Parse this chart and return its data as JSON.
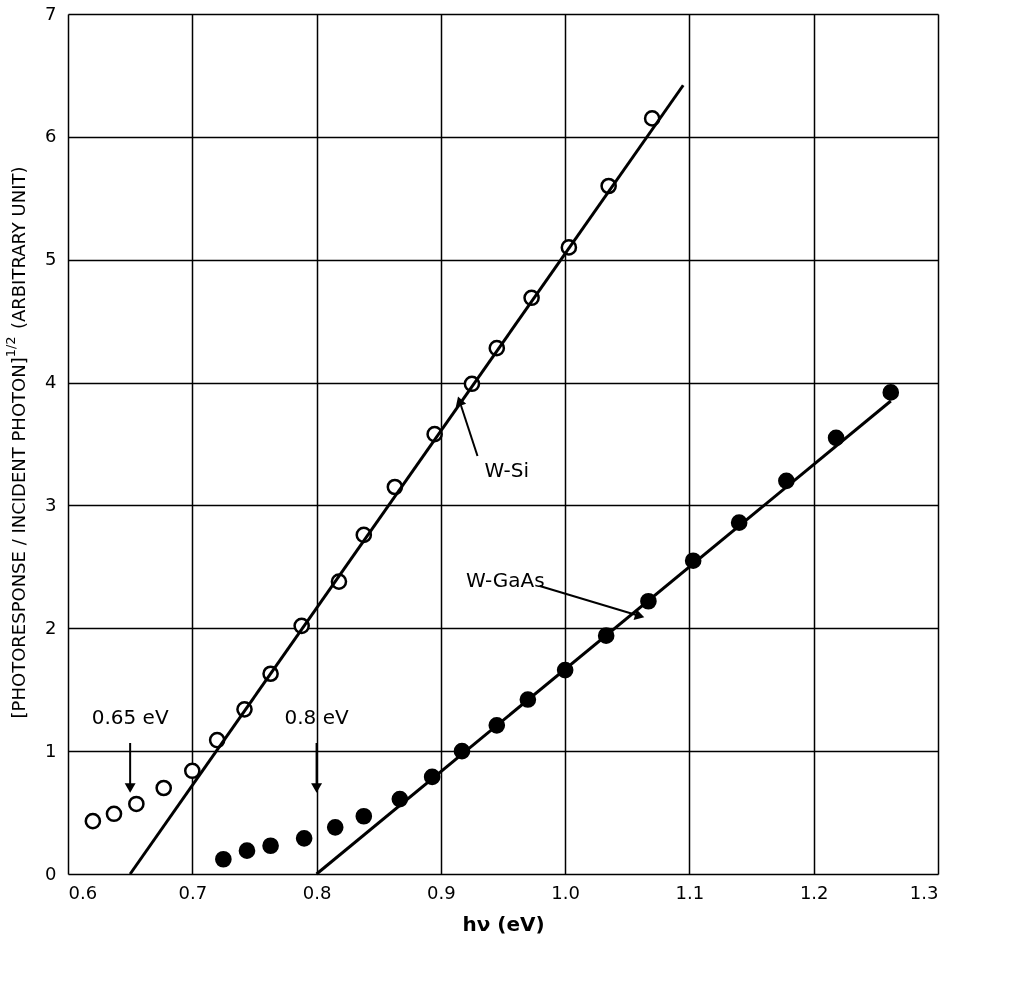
{
  "chart_data": {
    "type": "scatter",
    "xlabel": "hν (eV)",
    "ylabel": "[PHOTORESPONSE / INCIDENT PHOTON]$^{1/2}$ (ARBITRARY UNIT)",
    "xlim": [
      0.6,
      1.3
    ],
    "ylim": [
      0,
      7
    ],
    "xticks": [
      0.6,
      0.7,
      0.8,
      0.9,
      {
        "value": 1.0,
        "label": "1.0"
      },
      1.1,
      1.2,
      1.3
    ],
    "yticks": [
      0,
      1,
      2,
      3,
      4,
      5,
      6,
      7
    ],
    "grid": true,
    "marker": "circle",
    "series": [
      {
        "color": "#000000",
        "x": [
          0.62,
          0.637,
          0.655,
          0.677,
          0.7,
          0.72,
          0.742,
          0.763,
          0.788,
          0.818,
          0.838,
          0.863,
          0.895,
          0.925,
          0.945,
          0.973,
          1.003,
          1.035,
          1.07
        ],
        "values": [
          0.43,
          0.49,
          0.57,
          0.7,
          0.84,
          1.09,
          1.34,
          1.63,
          2.02,
          2.38,
          2.76,
          3.15,
          3.58,
          3.99,
          4.28,
          4.69,
          5.1,
          5.6,
          6.15
        ]
      },
      {
        "color": "#000000",
        "x": [
          0.725,
          0.744,
          0.763,
          0.79,
          0.815,
          0.838,
          0.867,
          0.893,
          0.917,
          0.945,
          0.97,
          1.0,
          1.033,
          1.067,
          1.103,
          1.14,
          1.178,
          1.218,
          1.262
        ],
        "values": [
          0.12,
          0.19,
          0.23,
          0.29,
          0.38,
          0.47,
          0.61,
          0.79,
          1.0,
          1.21,
          1.42,
          1.66,
          1.94,
          2.22,
          2.55,
          2.86,
          3.2,
          3.55,
          3.92
        ]
      },
      {
        "type": "line",
        "marker": "none",
        "line_style": "solid",
        "color": "#000000",
        "x": [
          0.65,
          1.095
        ],
        "values": [
          0,
          6.42
        ]
      },
      {
        "type": "line",
        "marker": "none",
        "line_style": "solid",
        "color": "#000000",
        "x": [
          0.8,
          1.262
        ],
        "values": [
          0,
          3.85
        ]
      }
    ],
    "annotations": [
      {
        "text": "0.65 eV",
        "x": 0.65,
        "y": 0.7
      },
      {
        "text": "0.8 eV",
        "x": 0.8,
        "y": 0.7
      },
      {
        "text": "W-Si",
        "x": 0.915,
        "y": 3.85
      },
      {
        "text": "W-GaAs",
        "x": 1.06,
        "y": 2.1
      }
    ]
  }
}
